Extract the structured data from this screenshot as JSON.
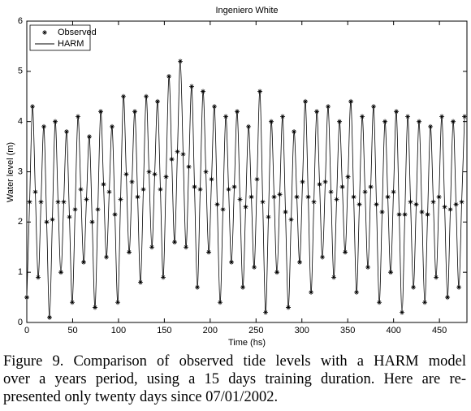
{
  "chart_data": {
    "type": "line",
    "title": "Ingeniero White",
    "x_label": "Time (hs)",
    "y_label": "Water level (m)",
    "x": [
      0,
      3.1,
      6.2,
      9.3,
      12.4,
      15.5,
      18.6,
      21.7,
      24.8,
      27.9,
      31,
      34.1,
      37.2,
      40.3,
      43.4,
      46.5,
      49.6,
      52.7,
      55.8,
      58.9,
      62,
      65.1,
      68.2,
      71.3,
      74.4,
      77.5,
      80.6,
      83.7,
      86.8,
      89.9,
      93,
      96.1,
      99.2,
      102.3,
      105.4,
      108.5,
      111.6,
      114.7,
      117.8,
      120.9,
      124,
      127.1,
      130.2,
      133.3,
      136.4,
      139.5,
      142.6,
      145.7,
      148.8,
      151.9,
      155,
      158.1,
      161.2,
      164.3,
      167.4,
      170.5,
      173.6,
      176.7,
      179.8,
      182.9,
      186,
      189.1,
      192.2,
      195.3,
      198.4,
      201.5,
      204.6,
      207.7,
      210.8,
      213.9,
      217,
      220.1,
      223.2,
      226.3,
      229.4,
      232.5,
      235.6,
      238.7,
      241.8,
      244.9,
      248,
      251.1,
      254.2,
      257.3,
      260.4,
      263.5,
      266.6,
      269.7,
      272.8,
      275.9,
      279,
      282.1,
      285.2,
      288.3,
      291.4,
      294.5,
      297.6,
      300.7,
      303.8,
      306.9,
      310,
      313.1,
      316.2,
      319.3,
      322.4,
      325.5,
      328.6,
      331.7,
      334.8,
      337.9,
      341,
      344.1,
      347.2,
      350.3,
      353.4,
      356.5,
      359.6,
      362.7,
      365.8,
      368.9,
      372,
      375.1,
      378.2,
      381.3,
      384.4,
      387.5,
      390.6,
      393.7,
      396.8,
      399.9,
      403,
      406.1,
      409.2,
      412.3,
      415.4,
      418.5,
      421.6,
      424.7,
      427.8,
      430.9,
      434,
      437.1,
      440.2,
      443.3,
      446.4,
      449.5,
      452.6,
      455.7,
      458.8,
      461.9,
      465,
      468.1,
      471.2,
      474.3,
      477.4
    ],
    "series": [
      {
        "name": "Observed",
        "color": "#000000",
        "marker": "star",
        "values": [
          0.5,
          2.4,
          4.3,
          2.6,
          0.9,
          2.4,
          3.9,
          2.0,
          0.1,
          2.05,
          4.0,
          2.4,
          1.0,
          2.4,
          3.8,
          2.1,
          0.4,
          2.25,
          4.1,
          2.65,
          1.2,
          2.45,
          3.7,
          2.0,
          0.3,
          2.25,
          4.2,
          2.75,
          1.3,
          2.6,
          3.9,
          2.15,
          0.4,
          2.45,
          4.5,
          2.95,
          1.4,
          2.8,
          4.2,
          2.5,
          0.8,
          2.65,
          4.5,
          3.0,
          1.5,
          2.95,
          4.4,
          2.65,
          0.9,
          2.9,
          4.9,
          3.25,
          1.6,
          3.4,
          5.2,
          3.35,
          1.5,
          3.1,
          4.7,
          2.7,
          0.7,
          2.65,
          4.6,
          3.0,
          1.4,
          2.85,
          4.3,
          2.35,
          0.4,
          2.25,
          4.1,
          2.65,
          1.2,
          2.7,
          4.2,
          2.45,
          0.7,
          2.3,
          3.9,
          2.5,
          1.1,
          2.85,
          4.6,
          2.4,
          0.2,
          2.1,
          4.0,
          2.5,
          1.0,
          2.55,
          4.1,
          2.2,
          0.3,
          2.05,
          3.8,
          2.5,
          1.2,
          2.8,
          4.4,
          2.5,
          0.6,
          2.4,
          4.2,
          2.75,
          1.3,
          2.8,
          4.3,
          2.6,
          0.9,
          2.45,
          4.0,
          2.7,
          1.4,
          2.9,
          4.4,
          2.5,
          0.6,
          2.35,
          4.1,
          2.6,
          1.1,
          2.7,
          4.3,
          2.35,
          0.4,
          2.2,
          4.0,
          2.5,
          1.0,
          2.6,
          4.2,
          2.15,
          0.2,
          2.15,
          4.1,
          2.4,
          0.7,
          2.35,
          4.0,
          2.2,
          0.4,
          2.15,
          3.9,
          2.4,
          0.9,
          2.5,
          4.1,
          2.3,
          0.5,
          2.25,
          4.0,
          2.35,
          0.7,
          2.4,
          4.1
        ]
      },
      {
        "name": "HARM",
        "color": "#000000",
        "marker": "line",
        "values": [
          0.5,
          2.4,
          4.3,
          2.6,
          0.9,
          2.4,
          3.9,
          2.0,
          0.1,
          2.05,
          4.0,
          2.4,
          1.0,
          2.4,
          3.8,
          2.1,
          0.4,
          2.25,
          4.1,
          2.65,
          1.2,
          2.45,
          3.7,
          2.0,
          0.3,
          2.25,
          4.2,
          2.75,
          1.3,
          2.6,
          3.9,
          2.15,
          0.4,
          2.45,
          4.5,
          2.95,
          1.4,
          2.8,
          4.2,
          2.5,
          0.8,
          2.65,
          4.5,
          3.0,
          1.5,
          2.95,
          4.4,
          2.65,
          0.9,
          2.9,
          4.9,
          3.25,
          1.6,
          3.4,
          5.2,
          3.35,
          1.5,
          3.1,
          4.7,
          2.7,
          0.7,
          2.65,
          4.6,
          3.0,
          1.4,
          2.85,
          4.3,
          2.35,
          0.4,
          2.25,
          4.1,
          2.65,
          1.2,
          2.7,
          4.2,
          2.45,
          0.7,
          2.3,
          3.9,
          2.5,
          1.1,
          2.85,
          4.6,
          2.4,
          0.2,
          2.1,
          4.0,
          2.5,
          1.0,
          2.55,
          4.1,
          2.2,
          0.3,
          2.05,
          3.8,
          2.5,
          1.2,
          2.8,
          4.4,
          2.5,
          0.6,
          2.4,
          4.2,
          2.75,
          1.3,
          2.8,
          4.3,
          2.6,
          0.9,
          2.45,
          4.0,
          2.7,
          1.4,
          2.9,
          4.4,
          2.5,
          0.6,
          2.35,
          4.1,
          2.6,
          1.1,
          2.7,
          4.3,
          2.35,
          0.4,
          2.2,
          4.0,
          2.5,
          1.0,
          2.6,
          4.2,
          2.15,
          0.2,
          2.15,
          4.1,
          2.4,
          0.7,
          2.35,
          4.0,
          2.2,
          0.4,
          2.15,
          3.9,
          2.4,
          0.9,
          2.5,
          4.1,
          2.3,
          0.5,
          2.25,
          4.0,
          2.35,
          0.7,
          2.4,
          4.1
        ]
      }
    ],
    "xlim": [
      0,
      480
    ],
    "xticks": [
      0,
      50,
      100,
      150,
      200,
      250,
      300,
      350,
      400,
      450
    ],
    "ylim": [
      0,
      6
    ],
    "yticks": [
      0,
      1,
      2,
      3,
      4,
      5,
      6
    ],
    "grid": false,
    "legend": "upper left"
  },
  "caption": {
    "lines": [
      "Figure 9. Comparison of observed tide levels with a HARM model",
      "over a years period, using a 15 days training duration. Here are re-",
      "presented only twenty days since 07/01/2002."
    ]
  }
}
